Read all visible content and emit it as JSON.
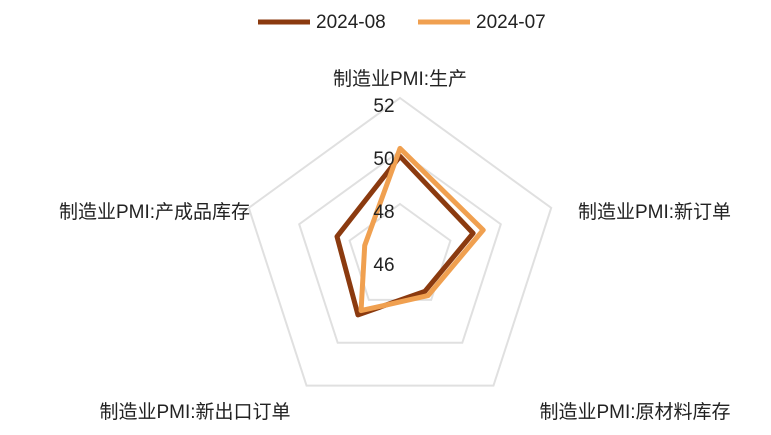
{
  "chart_data": {
    "type": "radar",
    "categories": [
      "制造业PMI:生产",
      "制造业PMI:新订单",
      "制造业PMI:原材料库存",
      "制造业PMI:新出口订单",
      "制造业PMI:产成品库存"
    ],
    "series": [
      {
        "name": "2024-08",
        "color": "#8b3a0f",
        "values": [
          49.8,
          48.9,
          47.6,
          48.7,
          48.5
        ]
      },
      {
        "name": "2024-07",
        "color": "#f0a050",
        "values": [
          50.1,
          49.3,
          47.8,
          48.5,
          47.4
        ]
      }
    ],
    "ylim": [
      46,
      52
    ],
    "yticks": [
      46,
      48,
      50,
      52
    ],
    "grid": true,
    "legend": "top"
  }
}
